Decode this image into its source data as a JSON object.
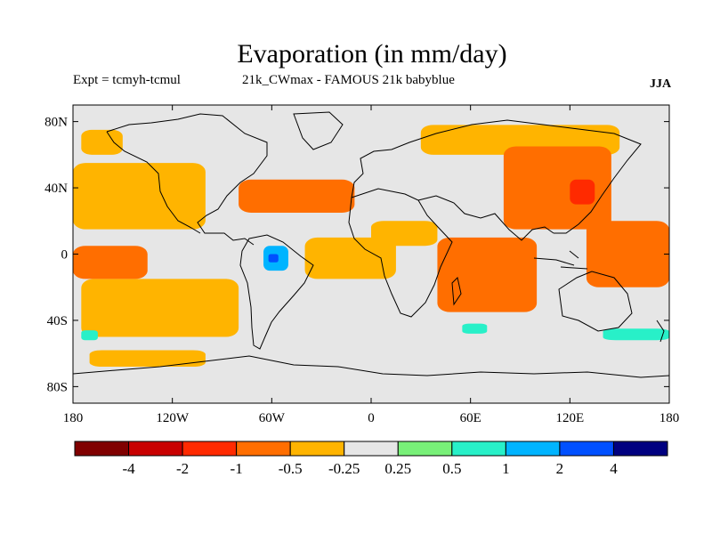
{
  "title": "Evaporation (in mm/day)",
  "subtitle_left": "Expt = tcmyh-tcmul",
  "subtitle_center": "21k_CWmax - FAMOUS 21k babyblue",
  "season": "JJA",
  "axes": {
    "lon_ticks": [
      {
        "value": -180,
        "label": "180"
      },
      {
        "value": -120,
        "label": "120W"
      },
      {
        "value": -60,
        "label": "60W"
      },
      {
        "value": 0,
        "label": "0"
      },
      {
        "value": 60,
        "label": "60E"
      },
      {
        "value": 120,
        "label": "120E"
      },
      {
        "value": 180,
        "label": "180"
      }
    ],
    "lat_ticks": [
      {
        "value": 80,
        "label": "80N"
      },
      {
        "value": 40,
        "label": "40N"
      },
      {
        "value": 0,
        "label": "0"
      },
      {
        "value": -40,
        "label": "40S"
      },
      {
        "value": -80,
        "label": "80S"
      }
    ],
    "lon_range": [
      -180,
      180
    ],
    "lat_range": [
      -90,
      90
    ]
  },
  "colorbar": {
    "colors": [
      "#800000",
      "#c80000",
      "#ff2a00",
      "#ff6e00",
      "#ffb400",
      "#e6e6e6",
      "#78f078",
      "#28f0c8",
      "#00b4ff",
      "#0050ff",
      "#000080"
    ],
    "labels": [
      "-4",
      "-2",
      "-1",
      "-0.5",
      "-0.25",
      "0.25",
      "0.5",
      "1",
      "2",
      "4"
    ]
  },
  "chart_data": {
    "type": "heatmap",
    "title": "Evaporation (in mm/day)",
    "xlabel": "",
    "ylabel": "",
    "xlim": [
      -180,
      180
    ],
    "ylim": [
      -90,
      90
    ],
    "levels": [
      -4,
      -2,
      -1,
      -0.5,
      -0.25,
      0.25,
      0.5,
      1,
      2,
      4
    ],
    "regions": [
      {
        "name": "n-pacific",
        "lon": [
          -180,
          -100
        ],
        "lat": [
          15,
          55
        ],
        "value": -0.5
      },
      {
        "name": "n-pacific-high",
        "lon": [
          -175,
          -150
        ],
        "lat": [
          60,
          75
        ],
        "value": -0.5
      },
      {
        "name": "n-pacific-strip",
        "lon": [
          -180,
          -135
        ],
        "lat": [
          -15,
          5
        ],
        "value": -1
      },
      {
        "name": "s-pacific",
        "lon": [
          -175,
          -80
        ],
        "lat": [
          -50,
          -15
        ],
        "value": -0.5
      },
      {
        "name": "s-ocean",
        "lon": [
          -170,
          -100
        ],
        "lat": [
          -68,
          -58
        ],
        "value": -0.5
      },
      {
        "name": "n-atlantic",
        "lon": [
          -80,
          -10
        ],
        "lat": [
          25,
          45
        ],
        "value": -1
      },
      {
        "name": "amazon-positive",
        "lon": [
          -65,
          -50
        ],
        "lat": [
          -10,
          5
        ],
        "value": 1
      },
      {
        "name": "amazon-core",
        "lon": [
          -62,
          -56
        ],
        "lat": [
          -5,
          0
        ],
        "value": 2
      },
      {
        "name": "tropical-atlantic",
        "lon": [
          -40,
          15
        ],
        "lat": [
          -15,
          10
        ],
        "value": -0.5
      },
      {
        "name": "north-africa",
        "lon": [
          0,
          40
        ],
        "lat": [
          5,
          20
        ],
        "value": -0.5
      },
      {
        "name": "indian-ocean",
        "lon": [
          40,
          100
        ],
        "lat": [
          -35,
          10
        ],
        "value": -1
      },
      {
        "name": "asia",
        "lon": [
          80,
          145
        ],
        "lat": [
          15,
          65
        ],
        "value": -1
      },
      {
        "name": "e-asia-core",
        "lon": [
          120,
          135
        ],
        "lat": [
          30,
          45
        ],
        "value": -2
      },
      {
        "name": "w-pacific",
        "lon": [
          130,
          180
        ],
        "lat": [
          -20,
          20
        ],
        "value": -1
      },
      {
        "name": "arctic-rim",
        "lon": [
          30,
          150
        ],
        "lat": [
          60,
          78
        ],
        "value": -0.5
      },
      {
        "name": "s-indian-positive",
        "lon": [
          55,
          70
        ],
        "lat": [
          -48,
          -42
        ],
        "value": 0.5
      },
      {
        "name": "s-pacific-positive",
        "lon": [
          140,
          180
        ],
        "lat": [
          -52,
          -45
        ],
        "value": 0.5
      },
      {
        "name": "s-atlantic-positive",
        "lon": [
          -175,
          -165
        ],
        "lat": [
          -52,
          -46
        ],
        "value": 0.5
      }
    ]
  }
}
